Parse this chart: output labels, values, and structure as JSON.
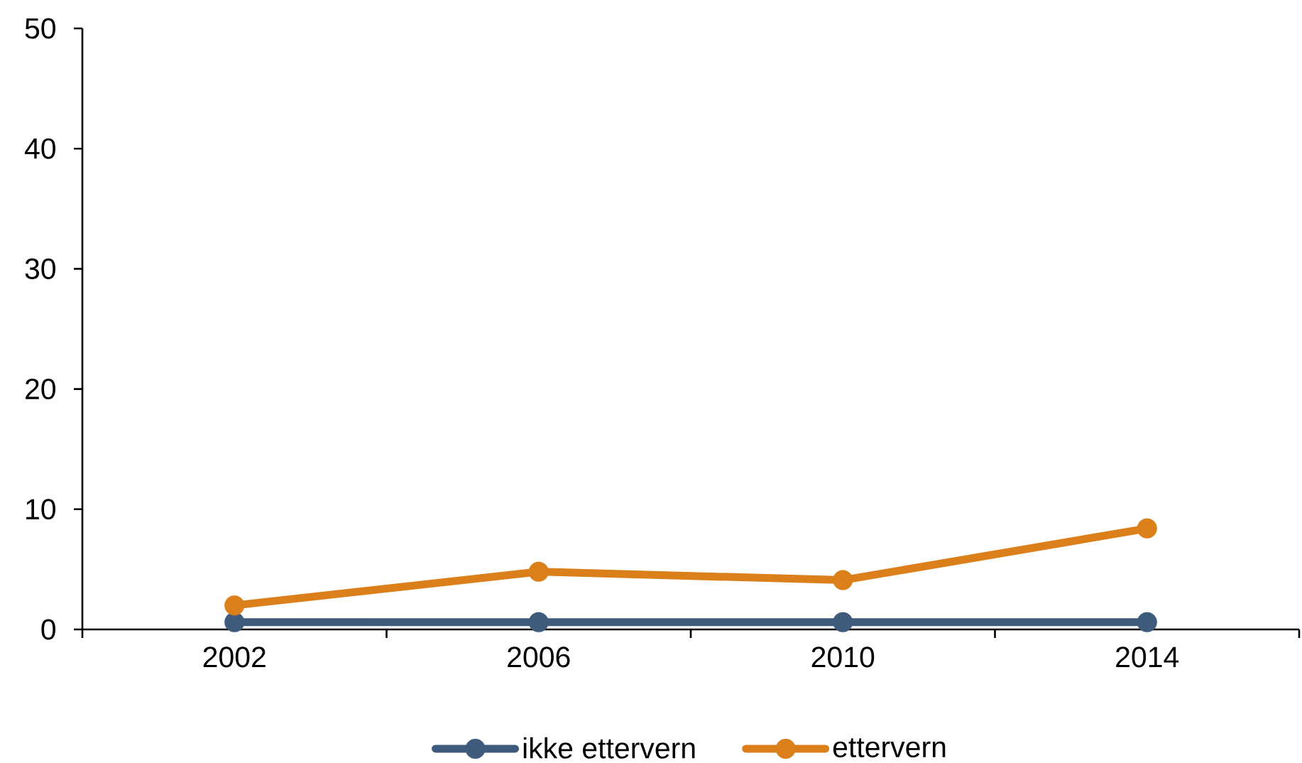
{
  "chart_data": {
    "type": "line",
    "categories": [
      "2002",
      "2006",
      "2010",
      "2014"
    ],
    "series": [
      {
        "name": "ikke ettervern",
        "color": "#3e5b7b",
        "values": [
          0.6,
          0.6,
          0.6,
          0.6
        ]
      },
      {
        "name": "ettervern",
        "color": "#da7f1a",
        "values": [
          2.0,
          4.8,
          4.1,
          8.4
        ]
      }
    ],
    "ylim": [
      0,
      50
    ],
    "yticks": [
      0,
      10,
      20,
      30,
      40,
      50
    ],
    "marker": "circle",
    "legend": "bottom"
  }
}
